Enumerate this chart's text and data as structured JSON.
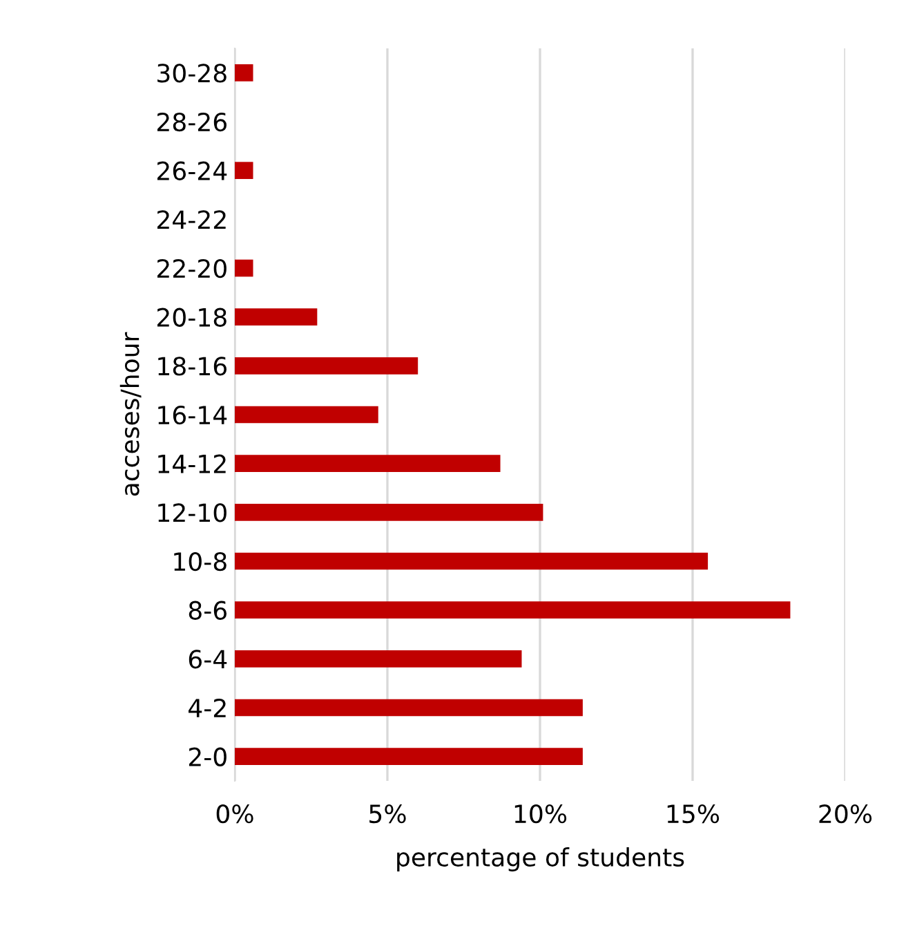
{
  "chart_data": {
    "type": "bar",
    "orientation": "horizontal",
    "xlabel": "percentage of students",
    "ylabel": "acceses/hour",
    "categories": [
      "30-28",
      "28-26",
      "26-24",
      "24-22",
      "22-20",
      "20-18",
      "18-16",
      "16-14",
      "14-12",
      "12-10",
      "10-8",
      "8-6",
      "6-4",
      "4-2",
      "2-0"
    ],
    "values": [
      0.6,
      0,
      0.6,
      0,
      0.6,
      2.7,
      6.0,
      4.7,
      8.7,
      10.1,
      15.5,
      18.2,
      9.4,
      11.4,
      11.4
    ],
    "color": "#c00000",
    "xlim": [
      0,
      20
    ],
    "xticks": [
      {
        "value": 0,
        "label": "0%"
      },
      {
        "value": 5,
        "label": "5%"
      },
      {
        "value": 10,
        "label": "10%"
      },
      {
        "value": 15,
        "label": "15%"
      },
      {
        "value": 20,
        "label": "20%"
      }
    ],
    "grid": "x",
    "legend": false
  }
}
